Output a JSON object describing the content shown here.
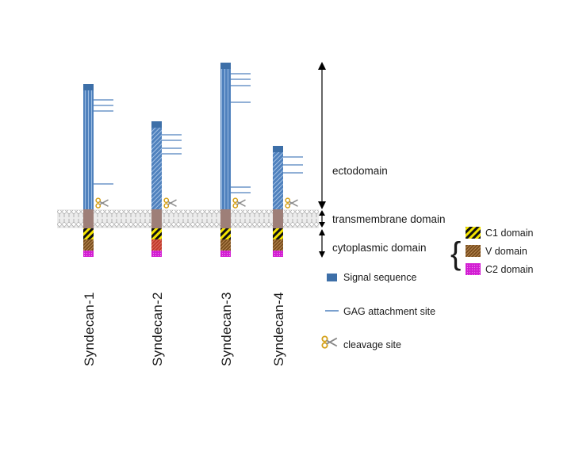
{
  "syndecans": [
    {
      "name": "Syndecan-1",
      "ecto_height": 158,
      "gag_sites": 4,
      "striped_ecto": false,
      "v_domain": "brown"
    },
    {
      "name": "Syndecan-2",
      "ecto_height": 111,
      "gag_sites": 4,
      "striped_ecto": true,
      "v_domain": "red"
    },
    {
      "name": "Syndecan-3",
      "ecto_height": 185,
      "gag_sites": 6,
      "striped_ecto": false,
      "v_domain": "brown"
    },
    {
      "name": "Syndecan-4",
      "ecto_height": 80,
      "gag_sites": 3,
      "striped_ecto": true,
      "v_domain": "brown"
    }
  ],
  "regions": {
    "ectodomain": "ectodomain",
    "transmembrane": "transmembrane domain",
    "cytoplasmic": "cytoplasmic domain"
  },
  "cyto_legend": {
    "c1": "C1 domain",
    "v": "V domain",
    "c2": "C2 domain"
  },
  "legend": {
    "signal": "Signal sequence",
    "gag": "GAG attachment site",
    "cleavage": "cleavage site"
  },
  "colors": {
    "ecto": "#4f81bd",
    "signal": "#3d6fa8",
    "tm": "#9e7f78",
    "c1_yellow": "#f5e500",
    "v_brown": "#7a4e1e",
    "v_red": "#c0392b",
    "c2": "#d21ed2",
    "gag": "#4f81bd"
  }
}
